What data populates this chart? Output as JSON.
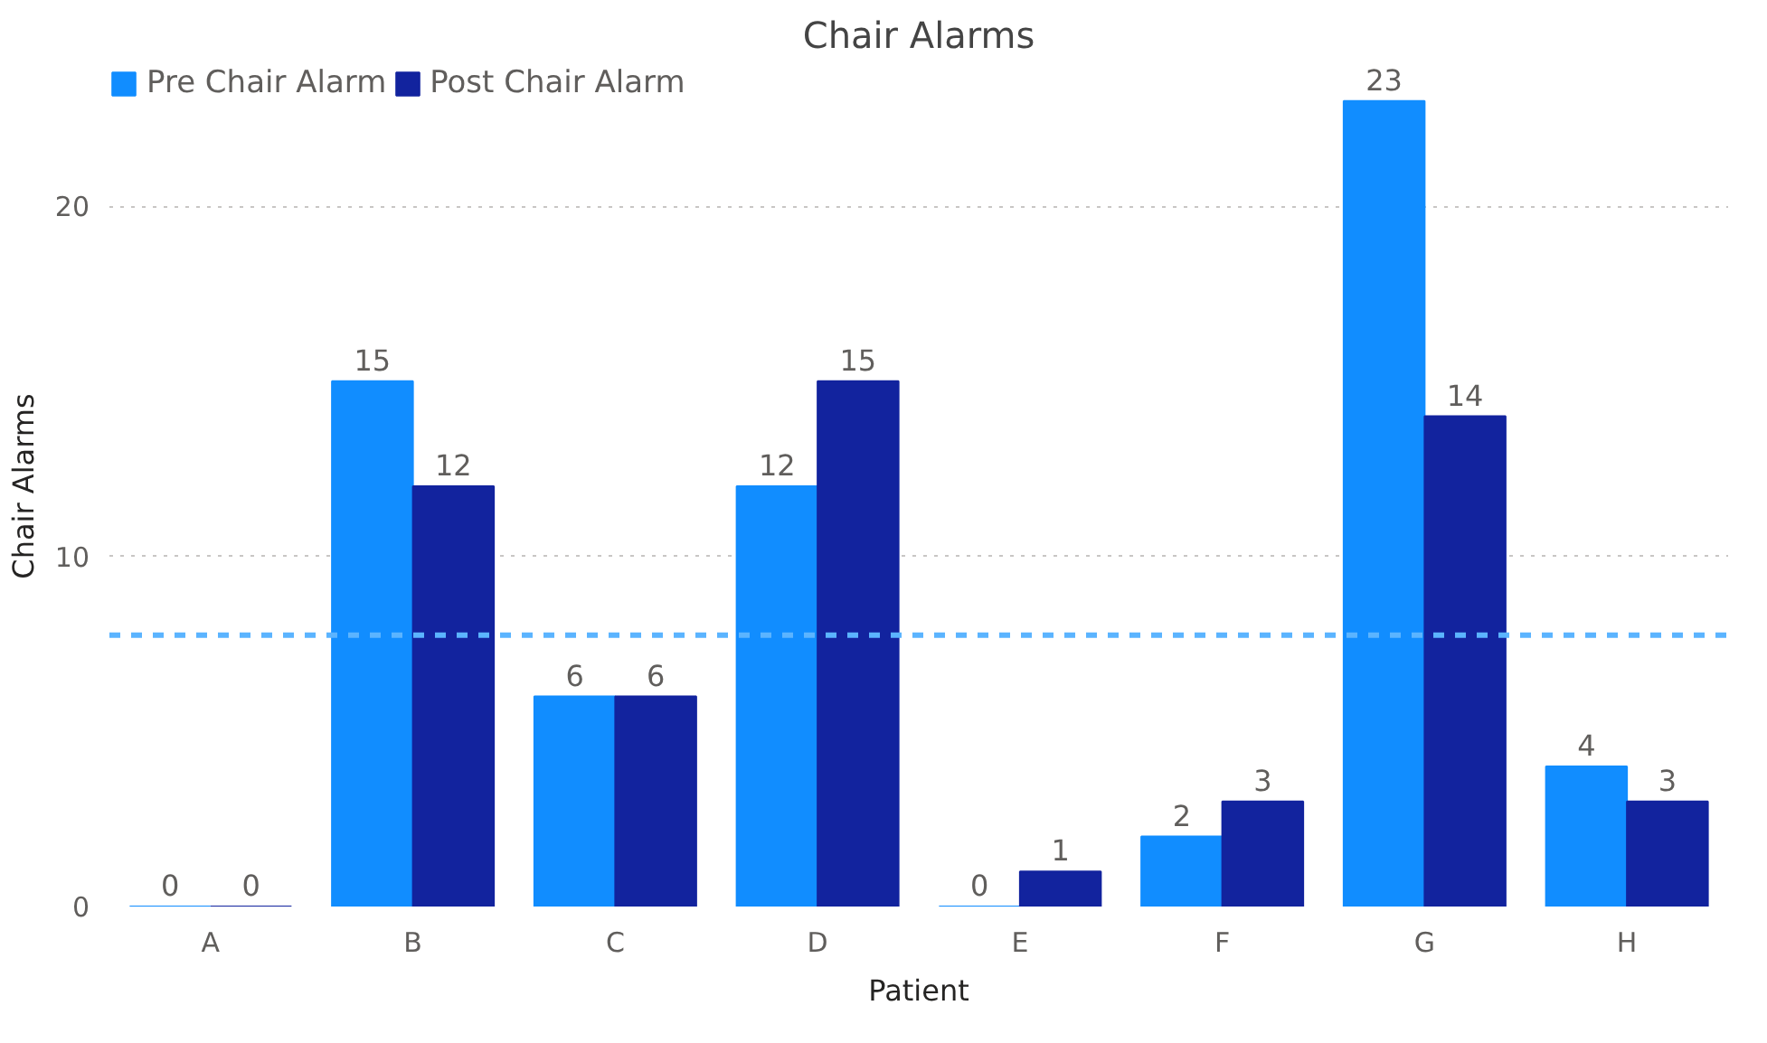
{
  "chart_data": {
    "type": "bar",
    "title": "Chair Alarms",
    "xlabel": "Patient",
    "ylabel": "Chair Alarms",
    "categories": [
      "A",
      "B",
      "C",
      "D",
      "E",
      "F",
      "G",
      "H"
    ],
    "series": [
      {
        "name": "Pre Chair Alarm",
        "color": "#118dff",
        "values": [
          0,
          15,
          6,
          12,
          0,
          2,
          23,
          4
        ]
      },
      {
        "name": "Post Chair Alarm",
        "color": "#12239e",
        "values": [
          0,
          12,
          6,
          15,
          1,
          3,
          14,
          3
        ]
      }
    ],
    "ylim": [
      0,
      24
    ],
    "yticks": [
      0,
      10,
      20
    ],
    "grid": "y",
    "legend": "top left",
    "data_labels": true,
    "ref_lines": [
      {
        "axis": "y",
        "value": 7.75,
        "color": "#5bb4ff",
        "line_style": "dashed"
      }
    ]
  }
}
